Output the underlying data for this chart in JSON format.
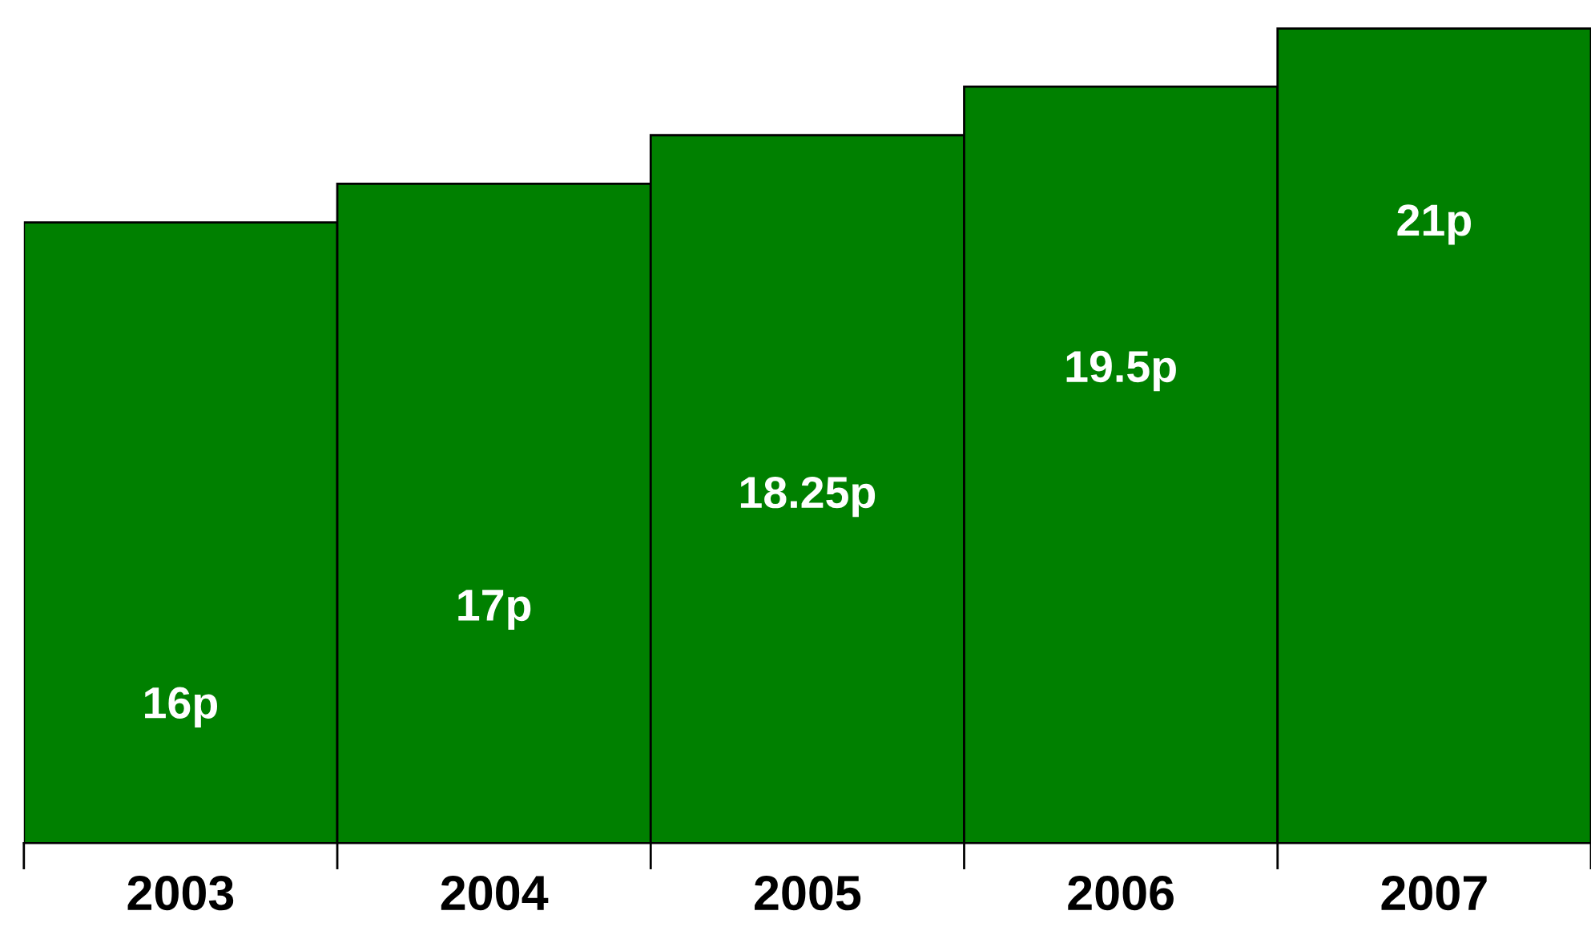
{
  "chart_data": {
    "type": "bar",
    "categories": [
      "2003",
      "2004",
      "2005",
      "2006",
      "2007"
    ],
    "values": [
      16,
      17,
      18.25,
      19.5,
      21
    ],
    "value_labels": [
      "16p",
      "17p",
      "18.25p",
      "19.5p",
      "21p"
    ],
    "color": "#008000",
    "grid": false,
    "legend": false
  }
}
